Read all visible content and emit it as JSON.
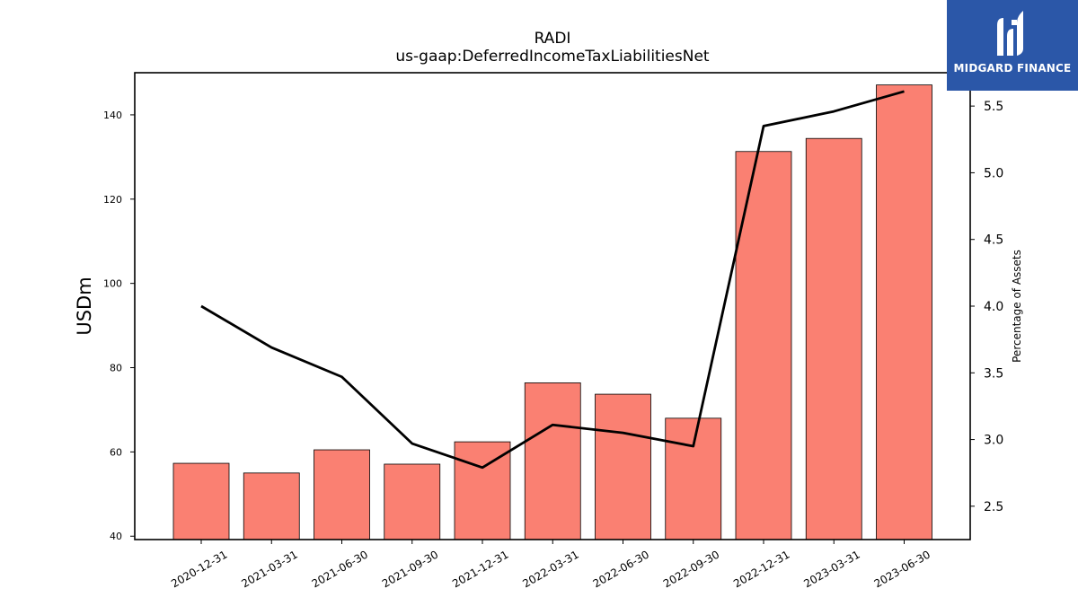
{
  "chart_data": {
    "type": "bar",
    "title": "RADI",
    "subtitle": "us-gaap:DeferredIncomeTaxLiabilitiesNet",
    "ylabel": "USDm",
    "y2label": "Percentage of Assets",
    "categories": [
      "2020-12-31",
      "2021-03-31",
      "2021-06-30",
      "2021-09-30",
      "2021-12-31",
      "2022-03-31",
      "2022-06-30",
      "2022-09-30",
      "2022-12-31",
      "2023-03-31",
      "2023-06-30"
    ],
    "series": [
      {
        "name": "",
        "type": "bar",
        "axis": "left",
        "values": [
          57.3,
          55.0,
          60.5,
          57.1,
          62.4,
          76.4,
          73.7,
          68.0,
          131.3,
          134.4,
          147.1
        ]
      },
      {
        "name": "",
        "type": "line",
        "axis": "right",
        "values": [
          4.0,
          3.69,
          3.47,
          2.97,
          2.79,
          3.11,
          3.05,
          2.95,
          5.35,
          5.46,
          5.61
        ]
      }
    ],
    "ylim": [
      39.2,
      150.0
    ],
    "y2lim": [
      2.25,
      5.75
    ],
    "yticks": [
      "40",
      "60",
      "80",
      "100",
      "120",
      "140"
    ],
    "y2ticks": [
      "2.5",
      "3.0",
      "3.5",
      "4.0",
      "4.5",
      "5.0",
      "5.5"
    ],
    "colors": {
      "bar": "#fa8072",
      "bar_edge": "#000000",
      "line": "#000000"
    },
    "grid": false,
    "legend": "none"
  },
  "logo": {
    "text": "MIDGARD FINANCE",
    "color": "#2b57a8"
  }
}
